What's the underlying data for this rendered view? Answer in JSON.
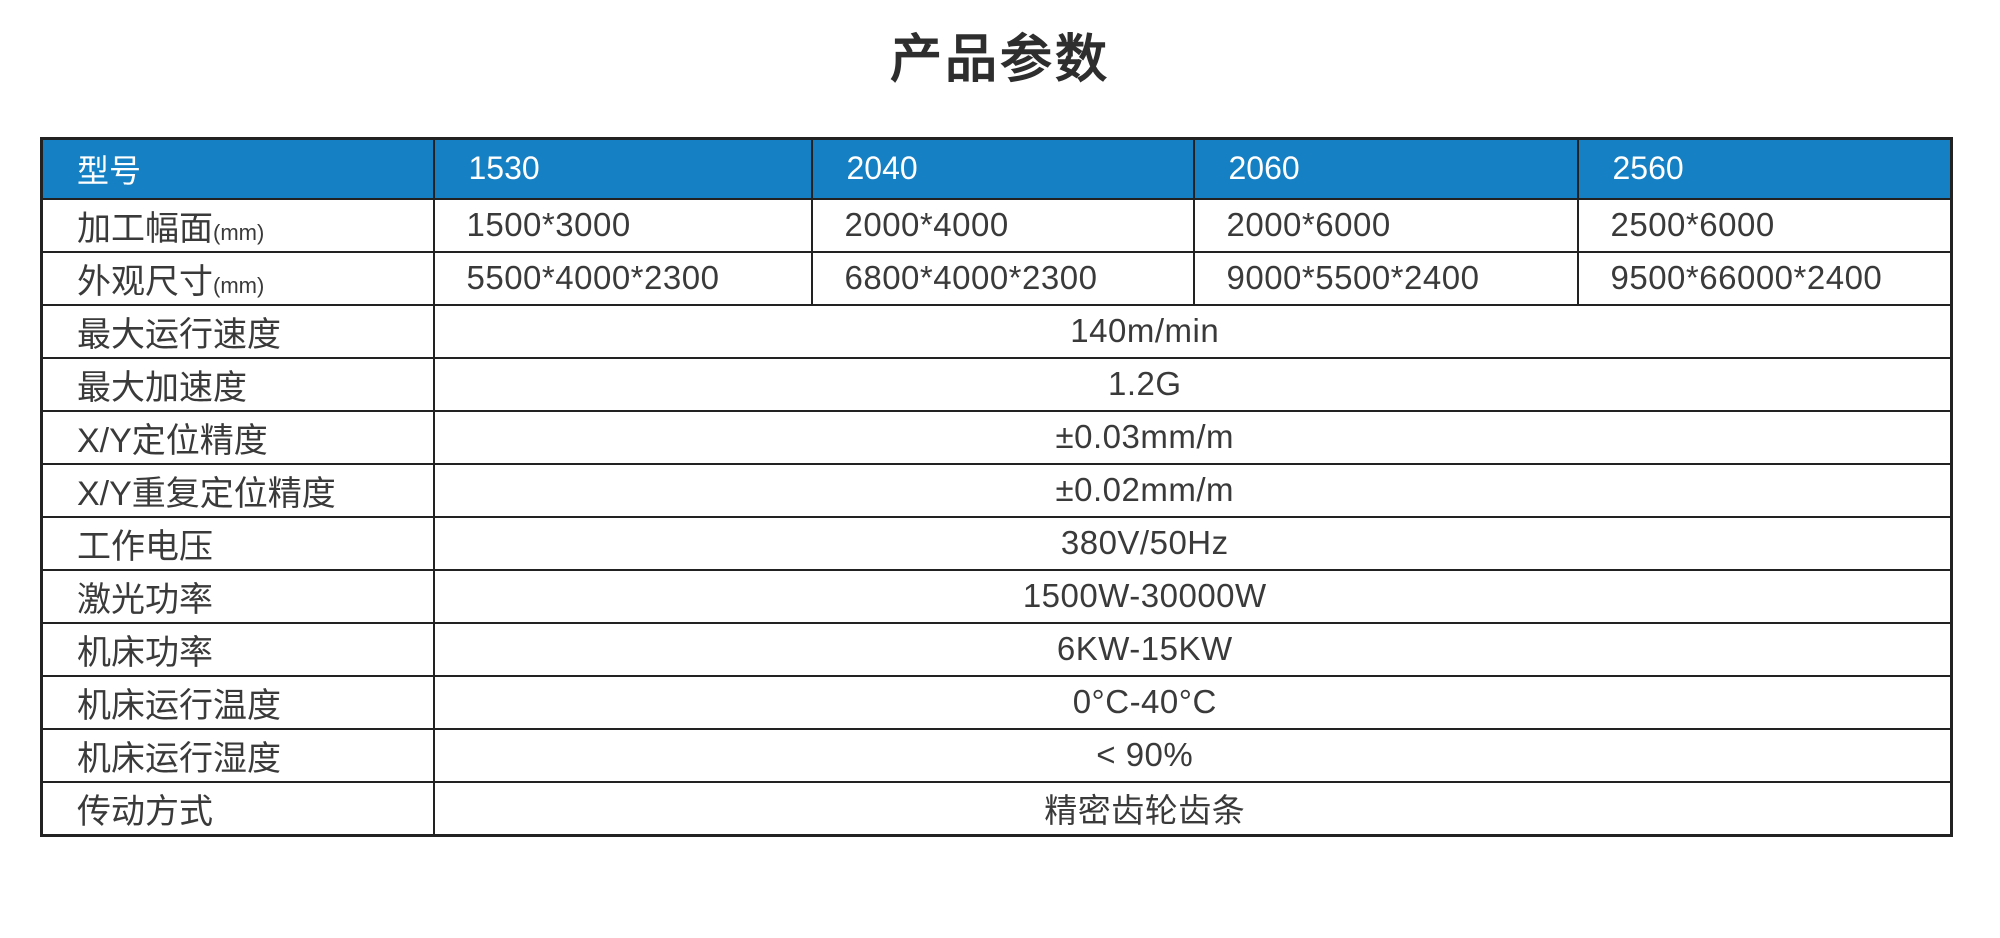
{
  "title": "产品参数",
  "colors": {
    "header_bg": "#1580c4",
    "header_text": "#ffffff",
    "border": "#222222",
    "body_text": "#3a3a3a",
    "background": "#ffffff"
  },
  "table": {
    "header": {
      "label": "型号",
      "models": [
        "1530",
        "2040",
        "2060",
        "2560"
      ]
    },
    "grid_rows": [
      {
        "label": "加工幅面",
        "unit": "(mm)",
        "values": [
          "1500*3000",
          "2000*4000",
          "2000*6000",
          "2500*6000"
        ]
      },
      {
        "label": "外观尺寸",
        "unit": "(mm)",
        "values": [
          "5500*4000*2300",
          "6800*4000*2300",
          "9000*5500*2400",
          "9500*66000*2400"
        ]
      }
    ],
    "span_rows": [
      {
        "label": "最大运行速度",
        "value": "140m/min"
      },
      {
        "label": "最大加速度",
        "value": "1.2G"
      },
      {
        "label": "X/Y定位精度",
        "value": "±0.03mm/m"
      },
      {
        "label": "X/Y重复定位精度",
        "value": "±0.02mm/m"
      },
      {
        "label": "工作电压",
        "value": "380V/50Hz"
      },
      {
        "label": "激光功率",
        "value": "1500W-30000W"
      },
      {
        "label": "机床功率",
        "value": "6KW-15KW"
      },
      {
        "label": "机床运行温度",
        "value": "0°C-40°C"
      },
      {
        "label": "机床运行湿度",
        "value": "< 90%"
      },
      {
        "label": "传动方式",
        "value": "精密齿轮齿条"
      }
    ]
  }
}
